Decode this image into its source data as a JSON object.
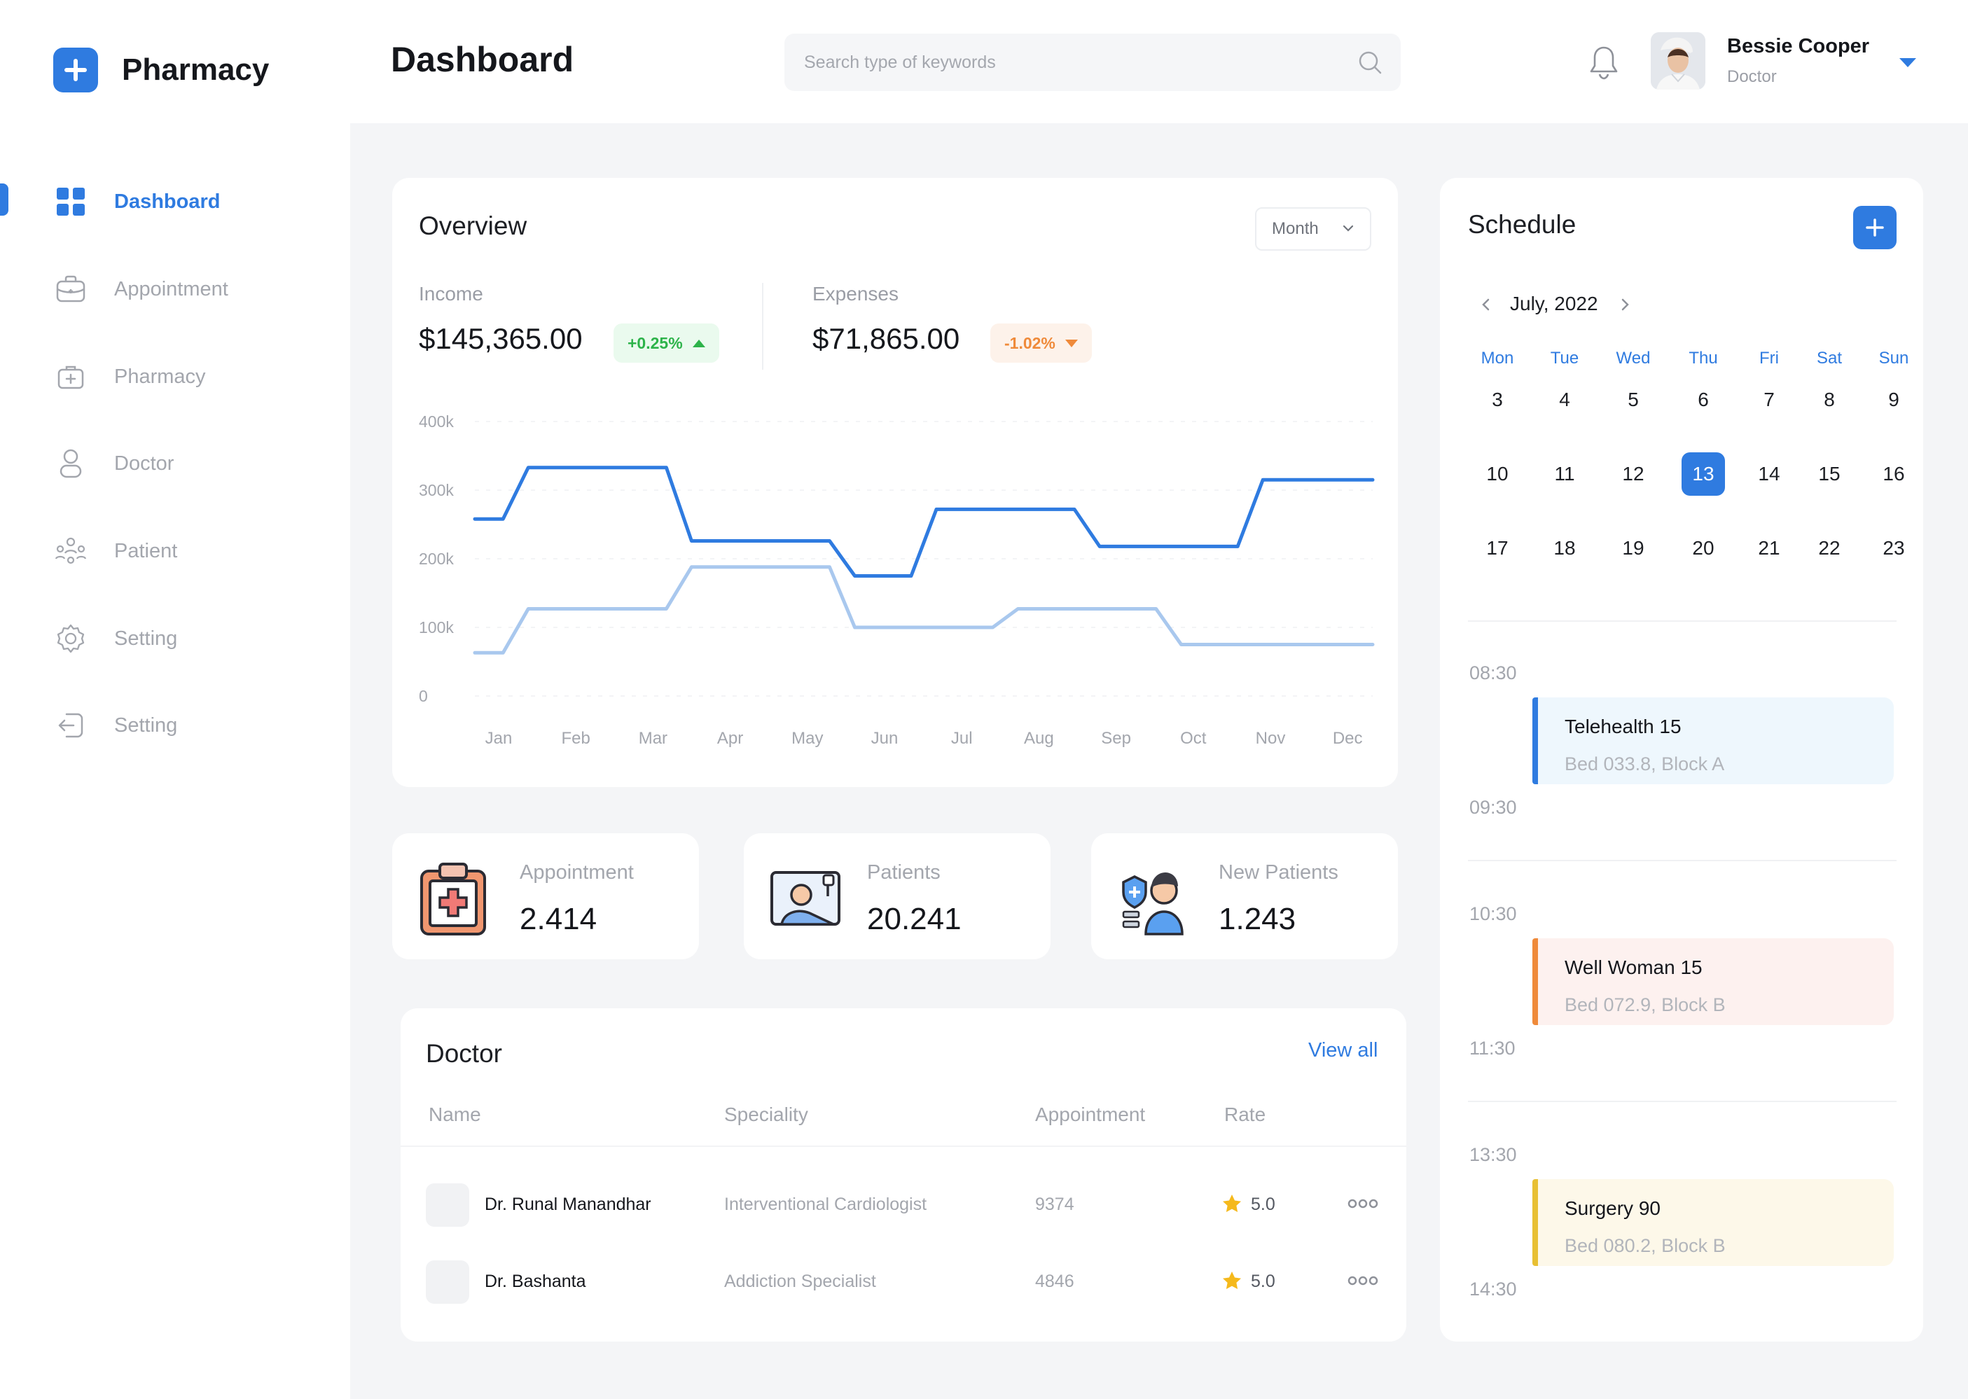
{
  "app": {
    "brand_name": "Pharmacy",
    "page_title": "Dashboard"
  },
  "search": {
    "placeholder": "Search type of keywords"
  },
  "user": {
    "name": "Bessie Cooper",
    "role": "Doctor"
  },
  "sidebar": {
    "items": [
      {
        "label": "Dashboard",
        "icon": "grid-icon",
        "active": true
      },
      {
        "label": "Appointment",
        "icon": "briefcase-medical-icon"
      },
      {
        "label": "Pharmacy",
        "icon": "first-aid-kit-icon"
      },
      {
        "label": "Doctor",
        "icon": "user-icon"
      },
      {
        "label": "Patient",
        "icon": "users-icon"
      },
      {
        "label": "Setting",
        "icon": "gear-icon"
      },
      {
        "label": "Setting",
        "icon": "logout-icon"
      }
    ]
  },
  "overview": {
    "title": "Overview",
    "period": "Month",
    "income": {
      "label": "Income",
      "value": "$145,365.00",
      "change": "+0.25%",
      "trend": "up"
    },
    "expenses": {
      "label": "Expenses",
      "value": "$71,865.00",
      "change": "-1.02%",
      "trend": "down"
    }
  },
  "chart_data": {
    "type": "line",
    "categories": [
      "Jan",
      "Feb",
      "Mar",
      "Apr",
      "May",
      "Jun",
      "Jul",
      "Aug",
      "Sep",
      "Oct",
      "Nov",
      "Dec"
    ],
    "y_ticks": [
      "400k",
      "300k",
      "200k",
      "100k",
      "0"
    ],
    "ylim": [
      0,
      400000
    ],
    "grid": true,
    "series": [
      {
        "color": "#2f7be0",
        "values": [
          258000,
          333000,
          333000,
          226000,
          226000,
          175000,
          272000,
          272000,
          218000,
          218000,
          315000,
          315000
        ]
      },
      {
        "color": "#a9c8ee",
        "values": [
          63000,
          127000,
          127000,
          188000,
          188000,
          100000,
          100000,
          127000,
          127000,
          75000,
          75000,
          75000
        ]
      }
    ]
  },
  "stats": [
    {
      "label": "Appointment",
      "value": "2.414",
      "icon": "clipboard-medical-icon"
    },
    {
      "label": "Patients",
      "value": "20.241",
      "icon": "patient-bed-icon"
    },
    {
      "label": "New Patients",
      "value": "1.243",
      "icon": "new-patient-icon"
    }
  ],
  "doctor_table": {
    "title": "Doctor",
    "view_all": "View all",
    "columns": [
      "Name",
      "Speciality",
      "Appointment",
      "Rate"
    ],
    "rows": [
      {
        "name": "Dr. Runal Manandhar",
        "speciality": "Interventional Cardiologist",
        "appointments": "9374",
        "rate": "5.0"
      },
      {
        "name": "Dr. Bashanta",
        "speciality": "Addiction Specialist",
        "appointments": "4846",
        "rate": "5.0"
      }
    ]
  },
  "schedule": {
    "title": "Schedule",
    "month_label": "July, 2022",
    "weekdays": [
      "Mon",
      "Tue",
      "Wed",
      "Thu",
      "Fri",
      "Sat",
      "Sun"
    ],
    "weeks": [
      [
        "3",
        "4",
        "5",
        "6",
        "7",
        "8",
        "9"
      ],
      [
        "10",
        "11",
        "12",
        "13",
        "14",
        "15",
        "16"
      ],
      [
        "17",
        "18",
        "19",
        "20",
        "21",
        "22",
        "23"
      ]
    ],
    "selected_day": "13",
    "events": [
      {
        "start": "08:30",
        "end": "09:30",
        "title": "Telehealth 15",
        "location": "Bed 033.8, Block A",
        "color": "#2f7be0",
        "bg": "#eef7fd"
      },
      {
        "start": "10:30",
        "end": "11:30",
        "title": "Well Woman 15",
        "location": "Bed 072.9, Block B",
        "color": "#ef8a3a",
        "bg": "#fdf1ef"
      },
      {
        "start": "13:30",
        "end": "14:30",
        "title": "Surgery 90",
        "location": "Bed 080.2, Block B",
        "color": "#e8c033",
        "bg": "#fdf8e9"
      }
    ]
  }
}
